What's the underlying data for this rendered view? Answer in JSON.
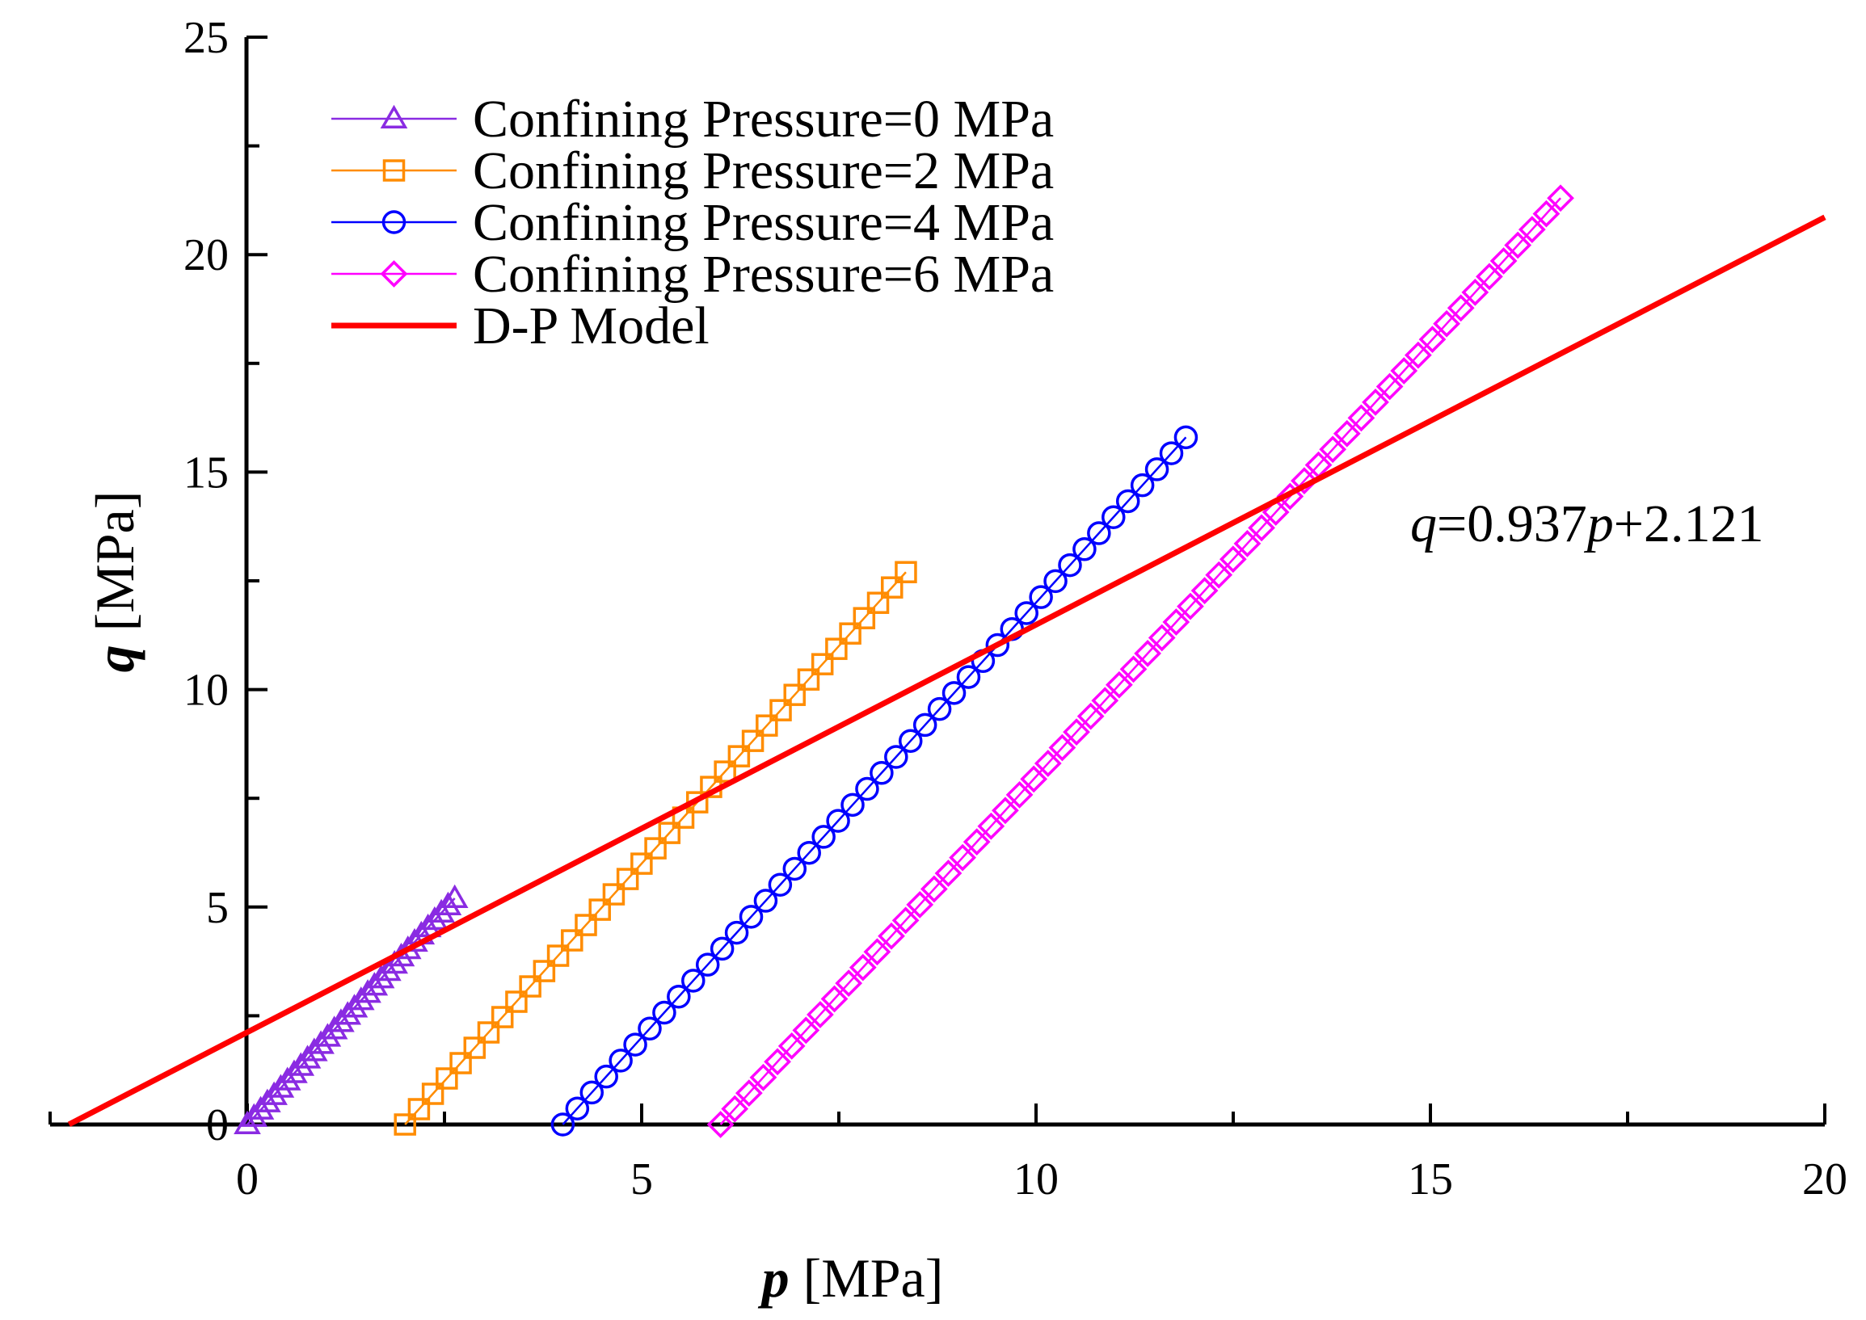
{
  "chart_data": {
    "type": "line",
    "x_axis": {
      "label_var": "p",
      "label_unit": " [MPa]",
      "range": [
        -2.5,
        20
      ],
      "ticks": [
        0,
        5,
        10,
        15,
        20
      ],
      "minor_step": 2.5
    },
    "y_axis": {
      "label_var": "q",
      "label_unit": " [MPa]",
      "range": [
        0,
        25
      ],
      "ticks": [
        0,
        5,
        10,
        15,
        20,
        25
      ],
      "minor_step": 2.5
    },
    "grid": false,
    "legend_position": "top-left",
    "annotation": {
      "var1": "q",
      "mid": "=0.937",
      "var2": "p",
      "rest": "+2.121"
    },
    "series": [
      {
        "name": "Confining Pressure=0 MPa",
        "marker": "triangle",
        "color": "#8a2be2",
        "x_start": 0.0,
        "x_end": 2.63,
        "y_start": 0.0,
        "y_end": 5.2,
        "points": 32
      },
      {
        "name": "Confining Pressure=2 MPa",
        "marker": "square",
        "color": "#ff8c00",
        "x_start": 2.0,
        "x_end": 8.35,
        "y_start": 0.0,
        "y_end": 12.7,
        "points": 37
      },
      {
        "name": "Confining Pressure=4 MPa",
        "marker": "circle",
        "color": "#0000ff",
        "x_start": 4.0,
        "x_end": 11.9,
        "y_start": 0.0,
        "y_end": 15.8,
        "points": 44
      },
      {
        "name": "Confining Pressure=6 MPa",
        "marker": "diamond",
        "color": "#ff00ff",
        "x_start": 6.0,
        "x_end": 16.65,
        "y_start": 0.0,
        "y_end": 21.3,
        "points": 60
      },
      {
        "name": "D-P Model",
        "marker": "none",
        "color": "#ff0000",
        "slope": 0.937,
        "intercept": 2.121,
        "x_range": [
          -2.26,
          20
        ]
      }
    ]
  }
}
